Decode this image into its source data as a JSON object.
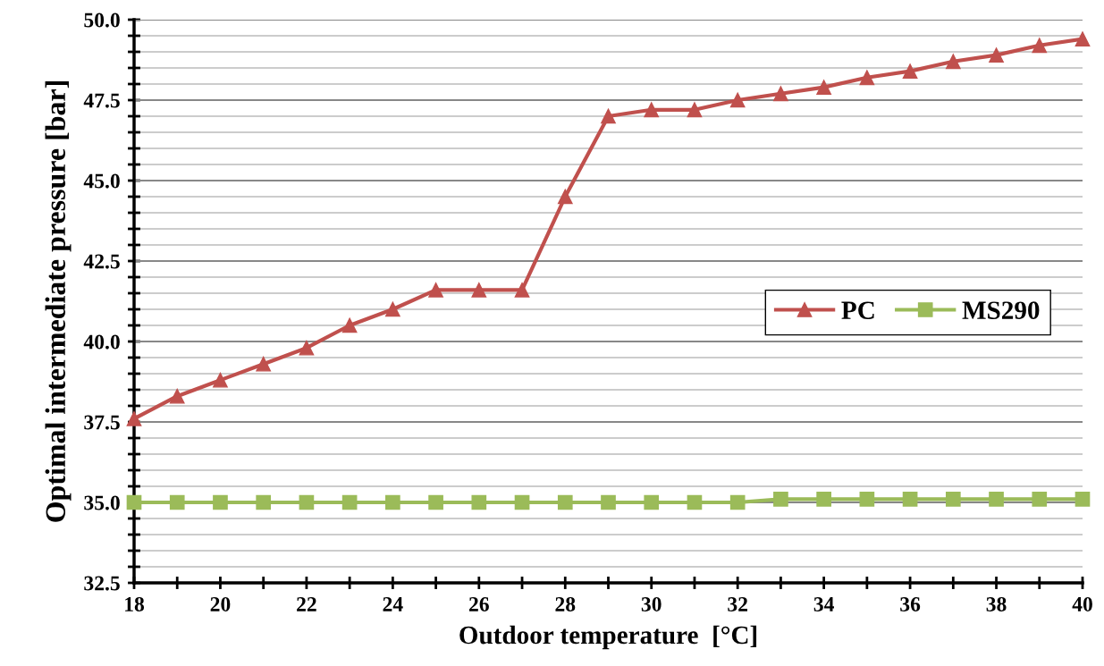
{
  "chart_data": {
    "type": "line",
    "xlabel": "Outdoor temperature  [°C]",
    "ylabel": "Optimal intermediate pressure [bar]",
    "x": [
      18,
      19,
      20,
      21,
      22,
      23,
      24,
      25,
      26,
      27,
      28,
      29,
      30,
      31,
      32,
      33,
      34,
      35,
      36,
      37,
      38,
      39,
      40
    ],
    "series": [
      {
        "name": "PC",
        "color": "#c0504d",
        "marker": "triangle",
        "values": [
          37.6,
          38.3,
          38.8,
          39.3,
          39.8,
          40.5,
          41.0,
          41.6,
          41.6,
          41.6,
          44.5,
          47.0,
          47.2,
          47.2,
          47.5,
          47.7,
          47.9,
          48.2,
          48.4,
          48.7,
          48.9,
          49.2,
          49.4
        ]
      },
      {
        "name": "MS290",
        "color": "#9bbb59",
        "marker": "square",
        "values": [
          35.0,
          35.0,
          35.0,
          35.0,
          35.0,
          35.0,
          35.0,
          35.0,
          35.0,
          35.0,
          35.0,
          35.0,
          35.0,
          35.0,
          35.0,
          35.1,
          35.1,
          35.1,
          35.1,
          35.1,
          35.1,
          35.1,
          35.1
        ]
      }
    ],
    "xlim": [
      18,
      40
    ],
    "xticks": [
      18,
      {
        "value": 19,
        "label": null
      },
      20,
      {
        "value": 21,
        "label": null
      },
      22,
      {
        "value": 23,
        "label": null
      },
      24,
      {
        "value": 25,
        "label": null
      },
      26,
      {
        "value": 27,
        "label": null
      },
      28,
      {
        "value": 29,
        "label": null
      },
      30,
      {
        "value": 31,
        "label": null
      },
      32,
      {
        "value": 33,
        "label": null
      },
      34,
      {
        "value": 35,
        "label": null
      },
      36,
      {
        "value": 37,
        "label": null
      },
      38,
      {
        "value": 39,
        "label": null
      },
      40
    ],
    "ylim": [
      32.5,
      50.0
    ],
    "yticks": [
      {
        "value": 32.5,
        "label": "32.5"
      },
      {
        "value": 33.0,
        "label": null
      },
      {
        "value": 33.5,
        "label": null
      },
      {
        "value": 34.0,
        "label": null
      },
      {
        "value": 34.5,
        "label": null
      },
      {
        "value": 35.0,
        "label": "35.0"
      },
      {
        "value": 35.5,
        "label": null
      },
      {
        "value": 36.0,
        "label": null
      },
      {
        "value": 36.5,
        "label": null
      },
      {
        "value": 37.0,
        "label": null
      },
      {
        "value": 37.5,
        "label": "37.5"
      },
      {
        "value": 38.0,
        "label": null
      },
      {
        "value": 38.5,
        "label": null
      },
      {
        "value": 39.0,
        "label": null
      },
      {
        "value": 39.5,
        "label": null
      },
      {
        "value": 40.0,
        "label": "40.0"
      },
      {
        "value": 40.5,
        "label": null
      },
      {
        "value": 41.0,
        "label": null
      },
      {
        "value": 41.5,
        "label": null
      },
      {
        "value": 42.0,
        "label": null
      },
      {
        "value": 42.5,
        "label": "42.5"
      },
      {
        "value": 43.0,
        "label": null
      },
      {
        "value": 43.5,
        "label": null
      },
      {
        "value": 44.0,
        "label": null
      },
      {
        "value": 44.5,
        "label": null
      },
      {
        "value": 45.0,
        "label": "45.0"
      },
      {
        "value": 45.5,
        "label": null
      },
      {
        "value": 46.0,
        "label": null
      },
      {
        "value": 46.5,
        "label": null
      },
      {
        "value": 47.0,
        "label": null
      },
      {
        "value": 47.5,
        "label": "47.5"
      },
      {
        "value": 48.0,
        "label": null
      },
      {
        "value": 48.5,
        "label": null
      },
      {
        "value": 49.0,
        "label": null
      },
      {
        "value": 49.5,
        "label": null
      },
      {
        "value": 50.0,
        "label": "50.0"
      }
    ],
    "grid": "y",
    "legend": "right",
    "line_style": "solid"
  }
}
